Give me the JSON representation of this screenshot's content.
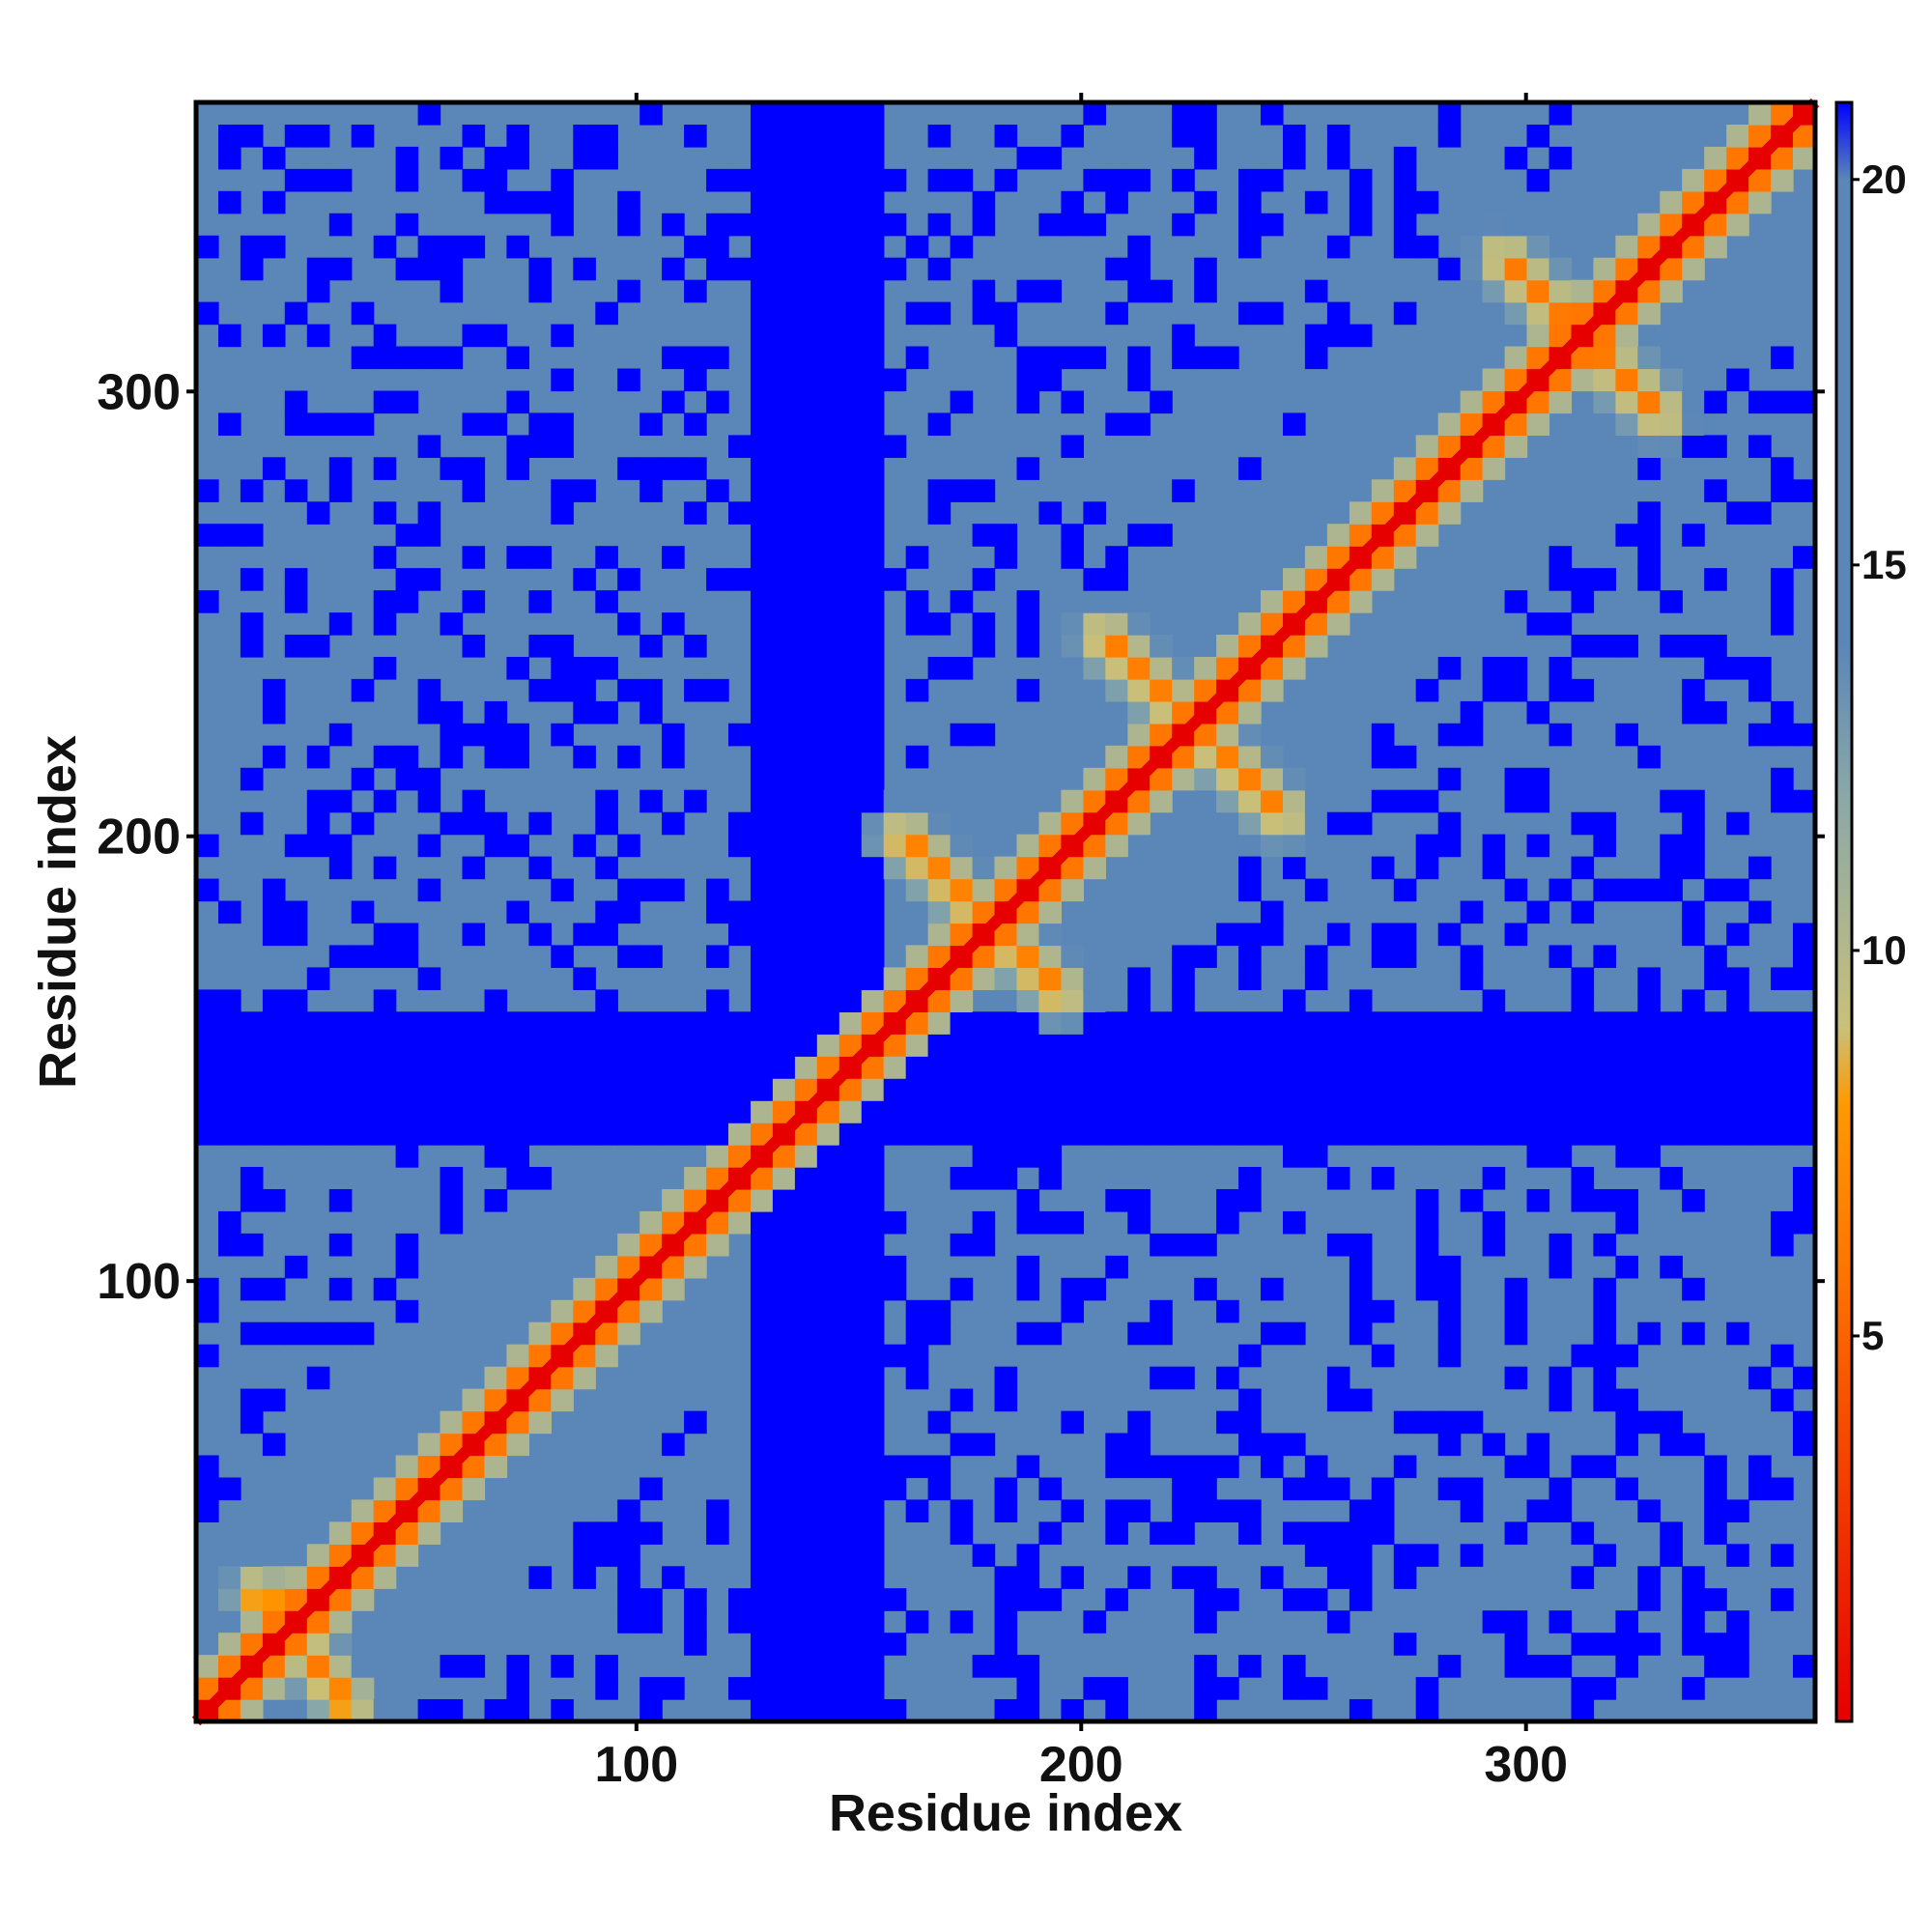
{
  "chart_data": {
    "type": "heatmap",
    "title": "",
    "xlabel": "Residue index",
    "ylabel": "Residue index",
    "xlim": [
      1,
      365
    ],
    "ylim": [
      1,
      365
    ],
    "x_ticks": [
      100,
      200,
      300
    ],
    "y_ticks": [
      100,
      200,
      300
    ],
    "colorbar": {
      "range": [
        0,
        21
      ],
      "ticks": [
        5,
        10,
        15,
        20
      ],
      "color_stops": [
        {
          "value": 0,
          "color": "#e60000"
        },
        {
          "value": 6,
          "color": "#ff7700"
        },
        {
          "value": 8,
          "color": "#ff9900"
        },
        {
          "value": 9,
          "color": "#c9c07a"
        },
        {
          "value": 12,
          "color": "#8aa8a8"
        },
        {
          "value": 14,
          "color": "#5a86b8"
        },
        {
          "value": 20,
          "color": "#5a86b8"
        },
        {
          "value": 21,
          "color": "#0000ff"
        }
      ]
    },
    "features": {
      "diagonal_distance": 0,
      "background_distance": 17,
      "far_distance": 21,
      "blue_horizontal_band_rows": [
        130,
        160
      ],
      "blue_vertical_band_cols": [
        125,
        155
      ],
      "secondary_contacts": [
        {
          "from": [
            15,
            30
          ],
          "to": [
            35,
            5
          ]
        },
        {
          "from": [
            160,
            200
          ],
          "to": [
            195,
            165
          ]
        },
        {
          "from": [
            205,
            245
          ],
          "to": [
            245,
            205
          ]
        },
        {
          "from": [
            295,
            330
          ],
          "to": [
            330,
            295
          ]
        }
      ]
    }
  }
}
